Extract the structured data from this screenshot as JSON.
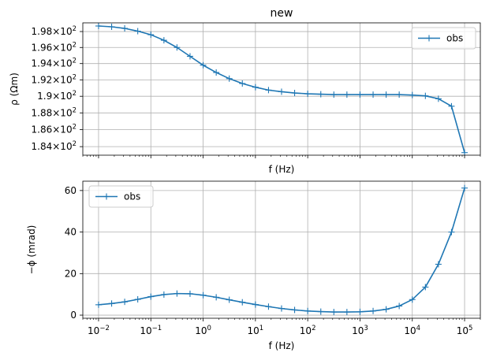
{
  "chart_data": [
    {
      "type": "line",
      "title": "new",
      "xlabel": "f (Hz)",
      "ylabel": "ρ (Ωm)",
      "xscale": "log",
      "yscale": "log",
      "xlim": [
        0.005,
        200000
      ],
      "ylim": [
        183.0,
        199.1
      ],
      "grid": true,
      "legend_position": "upper right",
      "x_tick_labels": [],
      "y_tick_labels": [
        {
          "value": 184,
          "mant": "1.84",
          "exp": "2"
        },
        {
          "value": 186,
          "mant": "1.86",
          "exp": "2"
        },
        {
          "value": 188,
          "mant": "1.88",
          "exp": "2"
        },
        {
          "value": 190,
          "mant": "1.9",
          "exp": "2"
        },
        {
          "value": 192,
          "mant": "1.92",
          "exp": "2"
        },
        {
          "value": 194,
          "mant": "1.94",
          "exp": "2"
        },
        {
          "value": 196,
          "mant": "1.96",
          "exp": "2"
        },
        {
          "value": 198,
          "mant": "1.98",
          "exp": "2"
        }
      ],
      "series": [
        {
          "name": "obs",
          "color": "#1f77b4",
          "marker": "+",
          "points": [
            [
              0.01,
              198.7
            ],
            [
              0.0178,
              198.6
            ],
            [
              0.0316,
              198.4
            ],
            [
              0.0562,
              198.05
            ],
            [
              0.1,
              197.6
            ],
            [
              0.178,
              196.9
            ],
            [
              0.316,
              196.0
            ],
            [
              0.562,
              194.9
            ],
            [
              1.0,
              193.8
            ],
            [
              1.78,
              192.9
            ],
            [
              3.16,
              192.15
            ],
            [
              5.62,
              191.55
            ],
            [
              10,
              191.1
            ],
            [
              17.8,
              190.75
            ],
            [
              31.6,
              190.55
            ],
            [
              56.2,
              190.4
            ],
            [
              100,
              190.3
            ],
            [
              178,
              190.25
            ],
            [
              316,
              190.2
            ],
            [
              562,
              190.2
            ],
            [
              1000,
              190.2
            ],
            [
              1780,
              190.2
            ],
            [
              3160,
              190.2
            ],
            [
              5620,
              190.2
            ],
            [
              10000,
              190.15
            ],
            [
              17800,
              190.05
            ],
            [
              31600,
              189.7
            ],
            [
              56200,
              188.8
            ],
            [
              100000,
              183.3
            ]
          ]
        }
      ]
    },
    {
      "type": "line",
      "title": "",
      "xlabel": "f (Hz)",
      "ylabel": "−ϕ (mrad)",
      "xscale": "log",
      "yscale": "linear",
      "xlim": [
        0.005,
        200000
      ],
      "ylim": [
        -1.5,
        64.5
      ],
      "grid": true,
      "legend_position": "upper left",
      "x_tick_labels": [
        {
          "value": 0.01,
          "base": "10",
          "exp": "−2"
        },
        {
          "value": 0.1,
          "base": "10",
          "exp": "−1"
        },
        {
          "value": 1,
          "base": "10",
          "exp": "0"
        },
        {
          "value": 10,
          "base": "10",
          "exp": "1"
        },
        {
          "value": 100,
          "base": "10",
          "exp": "2"
        },
        {
          "value": 1000,
          "base": "10",
          "exp": "3"
        },
        {
          "value": 10000,
          "base": "10",
          "exp": "4"
        },
        {
          "value": 100000,
          "base": "10",
          "exp": "5"
        }
      ],
      "y_tick_labels": [
        {
          "value": 0,
          "label": "0"
        },
        {
          "value": 20,
          "label": "20"
        },
        {
          "value": 40,
          "label": "40"
        },
        {
          "value": 60,
          "label": "60"
        }
      ],
      "series": [
        {
          "name": "obs",
          "color": "#1f77b4",
          "marker": "+",
          "points": [
            [
              0.01,
              5.0
            ],
            [
              0.0178,
              5.6
            ],
            [
              0.0316,
              6.4
            ],
            [
              0.0562,
              7.6
            ],
            [
              0.1,
              8.9
            ],
            [
              0.178,
              9.9
            ],
            [
              0.316,
              10.4
            ],
            [
              0.562,
              10.3
            ],
            [
              1.0,
              9.6
            ],
            [
              1.78,
              8.6
            ],
            [
              3.16,
              7.4
            ],
            [
              5.62,
              6.2
            ],
            [
              10,
              5.1
            ],
            [
              17.8,
              4.1
            ],
            [
              31.6,
              3.2
            ],
            [
              56.2,
              2.5
            ],
            [
              100,
              2.0
            ],
            [
              178,
              1.7
            ],
            [
              316,
              1.5
            ],
            [
              562,
              1.5
            ],
            [
              1000,
              1.6
            ],
            [
              1780,
              2.0
            ],
            [
              3160,
              2.8
            ],
            [
              5620,
              4.4
            ],
            [
              10000,
              7.5
            ],
            [
              17800,
              13.5
            ],
            [
              31600,
              24.5
            ],
            [
              56200,
              40.0
            ],
            [
              100000,
              61.2
            ]
          ]
        }
      ]
    }
  ]
}
